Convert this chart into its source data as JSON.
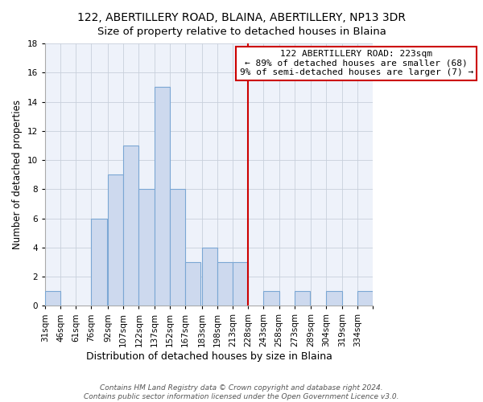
{
  "title": "122, ABERTILLERY ROAD, BLAINA, ABERTILLERY, NP13 3DR",
  "subtitle": "Size of property relative to detached houses in Blaina",
  "xlabel": "Distribution of detached houses by size in Blaina",
  "ylabel": "Number of detached properties",
  "bin_labels": [
    "31sqm",
    "46sqm",
    "61sqm",
    "76sqm",
    "92sqm",
    "107sqm",
    "122sqm",
    "137sqm",
    "152sqm",
    "167sqm",
    "183sqm",
    "198sqm",
    "213sqm",
    "228sqm",
    "243sqm",
    "258sqm",
    "273sqm",
    "289sqm",
    "304sqm",
    "319sqm",
    "334sqm"
  ],
  "bin_edges": [
    31,
    46,
    61,
    76,
    92,
    107,
    122,
    137,
    152,
    167,
    183,
    198,
    213,
    228,
    243,
    258,
    273,
    289,
    304,
    319,
    334
  ],
  "bar_heights": [
    1,
    0,
    0,
    6,
    9,
    11,
    8,
    15,
    8,
    3,
    4,
    3,
    3,
    0,
    1,
    0,
    1,
    0,
    1,
    0,
    1
  ],
  "bar_color": "#cdd9ee",
  "bar_edge_color": "#7ba7d4",
  "vline_x": 228,
  "vline_color": "#cc0000",
  "annotation_title": "122 ABERTILLERY ROAD: 223sqm",
  "annotation_line1": "← 89% of detached houses are smaller (68)",
  "annotation_line2": "9% of semi-detached houses are larger (7) →",
  "annotation_box_edge": "#cc0000",
  "annotation_box_face": "white",
  "ylim": [
    0,
    18
  ],
  "yticks": [
    0,
    2,
    4,
    6,
    8,
    10,
    12,
    14,
    16,
    18
  ],
  "footer1": "Contains HM Land Registry data © Crown copyright and database right 2024.",
  "footer2": "Contains public sector information licensed under the Open Government Licence v3.0.",
  "title_fontsize": 10,
  "subtitle_fontsize": 9.5,
  "xlabel_fontsize": 9,
  "ylabel_fontsize": 8.5,
  "tick_fontsize": 7.5,
  "annotation_fontsize": 8,
  "footer_fontsize": 6.5,
  "bg_color": "#eef2fa"
}
